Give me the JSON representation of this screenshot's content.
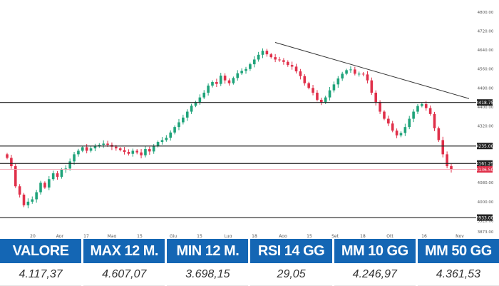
{
  "chart_data": {
    "type": "candlestick",
    "price_axis_ticks": [
      "4800.00",
      "4720.00",
      "4640.00",
      "4560.00",
      "4480.00",
      "4400.00",
      "4320.00",
      "4240.00",
      "4160.00",
      "4080.00",
      "4000.00",
      "3920.00",
      "3873.00"
    ],
    "time_axis_labels": [
      "20",
      "Apr",
      "17",
      "Mag",
      "15",
      "Giu",
      "15",
      "Lug",
      "18",
      "Ago",
      "15",
      "Set",
      "18",
      "Ott",
      "16",
      "Nov"
    ],
    "price_markers": [
      {
        "label": "4418.75",
        "color": "#222222"
      },
      {
        "label": "4235.00",
        "color": "#222222"
      },
      {
        "label": "4161.25",
        "color": "#222222"
      },
      {
        "label": "4136.50",
        "color": "#e0304a"
      },
      {
        "label": "3933.00",
        "color": "#222222"
      }
    ],
    "up_color": "#1fa37a",
    "down_color": "#e0304a",
    "closes": [
      4185,
      4150,
      4065,
      4030,
      3985,
      4000,
      4010,
      4040,
      4080,
      4060,
      4095,
      4120,
      4105,
      4135,
      4140,
      4170,
      4200,
      4215,
      4230,
      4215,
      4225,
      4235,
      4240,
      4245,
      4240,
      4232,
      4225,
      4218,
      4210,
      4202,
      4215,
      4208,
      4196,
      4222,
      4212,
      4235,
      4252,
      4260,
      4270,
      4292,
      4315,
      4335,
      4355,
      4380,
      4405,
      4420,
      4440,
      4460,
      4490,
      4505,
      4497,
      4532,
      4512,
      4500,
      4522,
      4542,
      4552,
      4560,
      4580,
      4600,
      4620,
      4637,
      4622,
      4610,
      4600,
      4597,
      4590,
      4577,
      4570,
      4550,
      4530,
      4500,
      4480,
      4460,
      4430,
      4420,
      4440,
      4470,
      4495,
      4520,
      4540,
      4555,
      4558,
      4540,
      4540,
      4537,
      4512,
      4460,
      4420,
      4380,
      4350,
      4330,
      4300,
      4280,
      4290,
      4315,
      4350,
      4380,
      4404,
      4412,
      4395,
      4370,
      4310,
      4260,
      4200,
      4150,
      4137
    ]
  },
  "stats": [
    {
      "label": "VALORE",
      "value": "4.117,37"
    },
    {
      "label": "MAX 12 M.",
      "value": "4.607,07"
    },
    {
      "label": "MIN 12 M.",
      "value": "3.698,15"
    },
    {
      "label": "RSI 14 GG",
      "value": "29,05"
    },
    {
      "label": "MM 10 GG",
      "value": "4.246,97"
    },
    {
      "label": "MM 50 GG",
      "value": "4.361,53"
    }
  ]
}
